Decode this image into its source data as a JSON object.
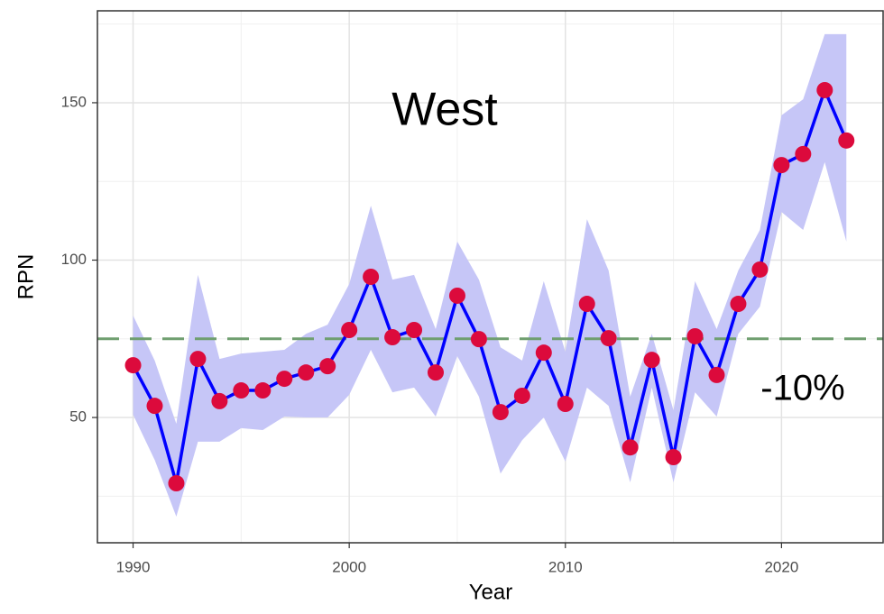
{
  "chart_data": {
    "type": "line",
    "x_label": "Year",
    "y_label": "RPN",
    "annotations": [
      "West",
      "-10%"
    ],
    "x": [
      1990,
      1991,
      1992,
      1993,
      1994,
      1995,
      1996,
      1997,
      1998,
      1999,
      2000,
      2001,
      2002,
      2003,
      2004,
      2005,
      2006,
      2007,
      2008,
      2009,
      2010,
      2011,
      2012,
      2013,
      2014,
      2015,
      2016,
      2017,
      2018,
      2019,
      2020,
      2021,
      2022,
      2023
    ],
    "values": [
      66.6,
      53.7,
      29.1,
      68.6,
      55.2,
      58.6,
      58.6,
      62.3,
      64.3,
      66.3,
      77.8,
      94.7,
      75.5,
      77.8,
      64.3,
      88.7,
      74.9,
      51.7,
      56.9,
      70.6,
      54.3,
      86.1,
      75.2,
      40.5,
      68.3,
      37.4,
      75.8,
      63.5,
      86.1,
      97.0,
      130.2,
      133.7,
      154.0,
      138.0
    ],
    "ci_upper": [
      82.4,
      68.1,
      48.0,
      95.3,
      68.6,
      70.3,
      70.9,
      71.5,
      76.6,
      79.5,
      92.4,
      117.3,
      93.8,
      95.3,
      78.1,
      105.9,
      93.8,
      72.3,
      68.1,
      93.3,
      70.9,
      113.0,
      96.7,
      56.6,
      76.6,
      52.3,
      93.3,
      78.1,
      96.7,
      109.6,
      146.0,
      151.1,
      171.8,
      171.8
    ],
    "ci_lower": [
      50.9,
      36.5,
      18.5,
      42.3,
      42.3,
      46.6,
      46.0,
      50.3,
      50.0,
      50.0,
      57.2,
      71.5,
      58.0,
      59.5,
      50.3,
      69.5,
      56.6,
      32.2,
      42.8,
      50.0,
      36.0,
      59.5,
      53.7,
      29.4,
      59.5,
      29.4,
      58.0,
      50.3,
      76.6,
      85.2,
      115.3,
      109.6,
      131.1,
      105.9
    ],
    "reference_line": 75,
    "line_color": "#0000ff",
    "point_color": "#dc0a3c",
    "band_color": "#c6c6f7",
    "reference_color": "#6f9e6f",
    "xlim": [
      1988.35,
      2024.7
    ],
    "ylim": [
      10.2,
      179.2
    ],
    "xticks": [
      1990,
      2000,
      2010,
      2020
    ],
    "yticks": [
      50,
      100,
      150
    ],
    "xminor": [
      1995,
      2005,
      2015
    ],
    "yminor": [
      25,
      75,
      125,
      175
    ],
    "grid": true
  }
}
